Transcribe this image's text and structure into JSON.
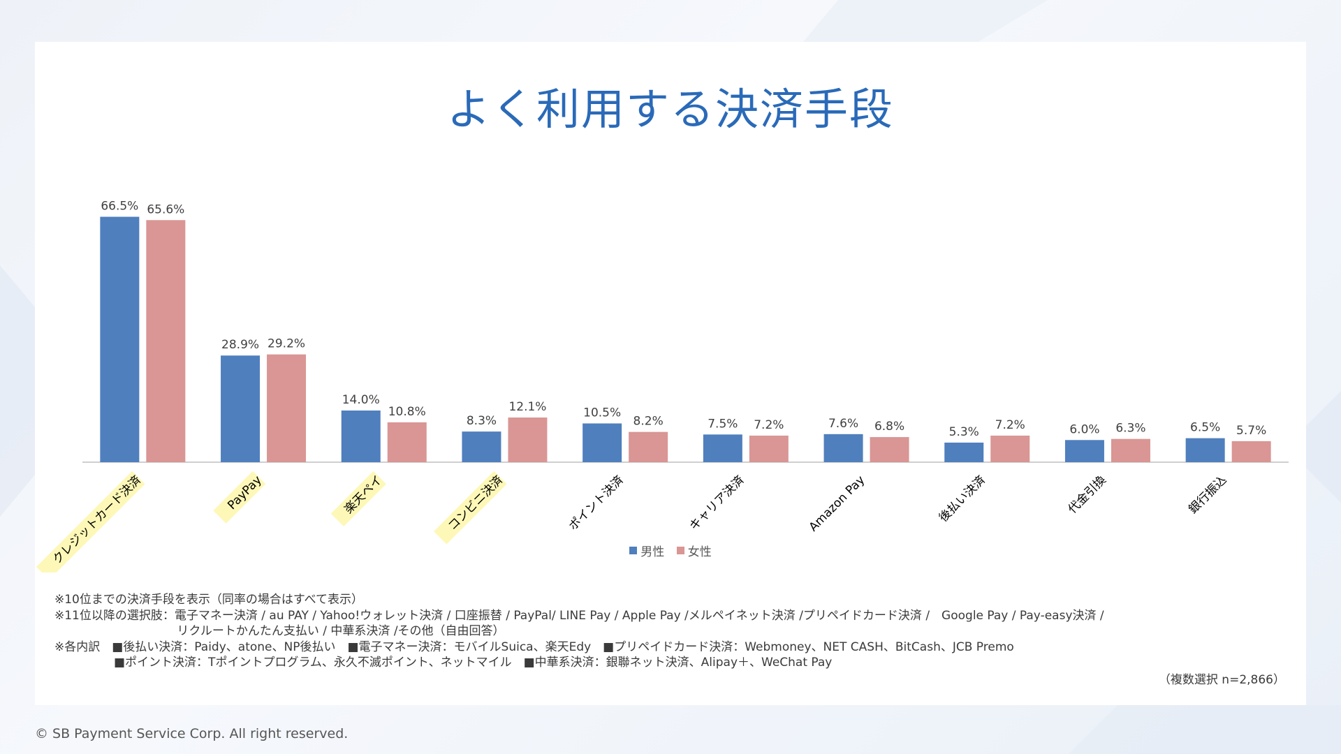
{
  "title": "よく利用する決済手段",
  "legend": [
    {
      "label": "男性",
      "color": "#4f7fbd"
    },
    {
      "label": "女性",
      "color": "#d99694"
    }
  ],
  "highlight_color": "#fdf8b7",
  "chart_data": {
    "type": "bar",
    "categories": [
      "クレジットカード決済",
      "PayPay",
      "楽天ペイ",
      "コンビニ決済",
      "ポイント決済",
      "キャリア決済",
      "Amazon Pay",
      "後払い決済",
      "代金引換",
      "銀行振込"
    ],
    "highlighted": [
      true,
      true,
      true,
      true,
      false,
      false,
      false,
      false,
      false,
      false
    ],
    "series": [
      {
        "name": "男性",
        "values": [
          66.5,
          28.9,
          14.0,
          8.3,
          10.5,
          7.5,
          7.6,
          5.3,
          6.0,
          6.5
        ],
        "labels": [
          "66.5%",
          "28.9%",
          "14.0%",
          "8.3%",
          "10.5%",
          "7.5%",
          "7.6%",
          "5.3%",
          "6.0%",
          "6.5%"
        ]
      },
      {
        "name": "女性",
        "values": [
          65.6,
          29.2,
          10.8,
          12.1,
          8.2,
          7.2,
          6.8,
          7.2,
          6.3,
          5.7
        ],
        "labels": [
          "65.6%",
          "29.2%",
          "10.8%",
          "12.1%",
          "8.2%",
          "7.2%",
          "6.8%",
          "7.2%",
          "6.3%",
          "5.7%"
        ]
      }
    ],
    "ylim": [
      0,
      70
    ],
    "grid": false,
    "legend_position": "bottom"
  },
  "notes": [
    "※10位までの決済手段を表示（同率の場合はすべて表示）",
    "※11位以降の選択肢：電子マネー決済 / au PAY / Yahoo!ウォレット決済 / 口座振替 / PayPal/ LINE Pay / Apple Pay /メルペイネット決済 /プリペイドカード決済 /　Google Pay / Pay-easy決済 /",
    "　　　　　　　　　　 リクルートかんたん支払い / 中華系決済 /その他（自由回答）",
    "※各内訳　■後払い決済：Paidy、atone、NP後払い　■電子マネー決済：モバイルSuica、楽天Edy　■プリペイドカード決済：Webmoney、NET CASH、BitCash、JCB Premo",
    "　　　　　■ポイント決済：Tポイントプログラム、永久不滅ポイント、ネットマイル　■中華系決済：銀聯ネット決済、Alipay＋、WeChat Pay"
  ],
  "sample_note": "（複数選択 n=2,866）",
  "copyright": "© SB Payment Service Corp. All right reserved."
}
